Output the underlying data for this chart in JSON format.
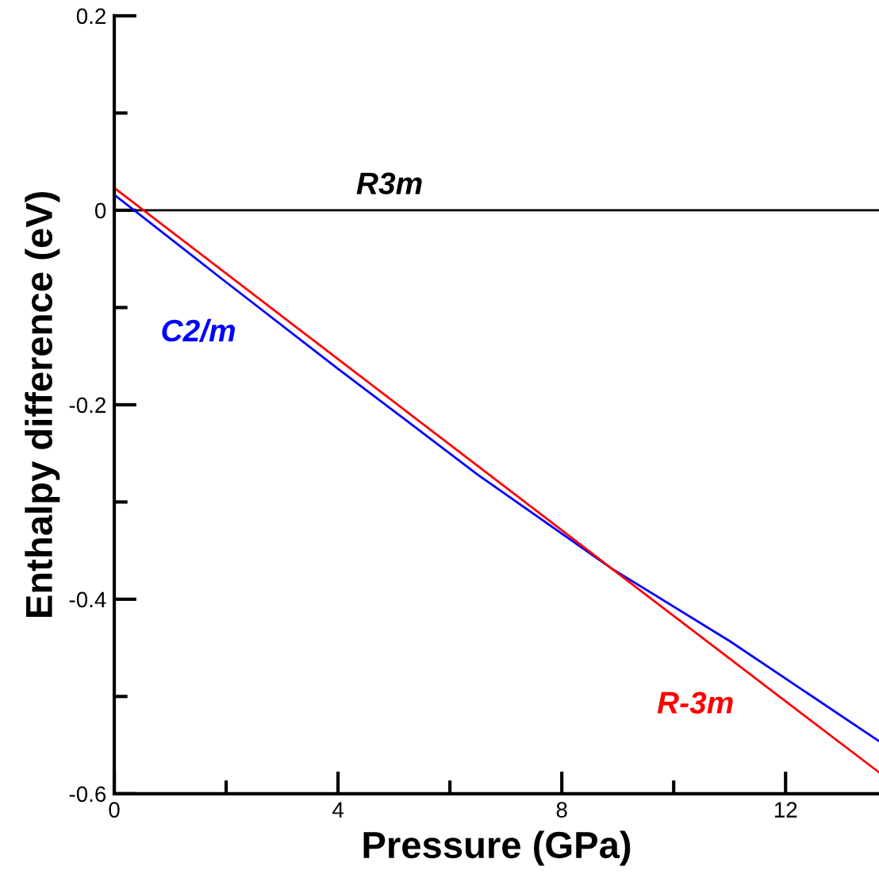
{
  "chart_data": {
    "type": "line",
    "xlabel": "Pressure (GPa)",
    "ylabel": "Enthalpy difference (eV)",
    "xlim": [
      0,
      13.67
    ],
    "ylim": [
      -0.6,
      0.2
    ],
    "xticks": [
      0,
      {
        "value": 2,
        "label": null
      },
      4,
      {
        "value": 6,
        "label": null
      },
      8,
      {
        "value": 10,
        "label": null
      },
      12
    ],
    "yticks": [
      {
        "value": -0.6,
        "label": "-0.6"
      },
      {
        "value": -0.5,
        "label": null
      },
      {
        "value": -0.4,
        "label": "-0.4"
      },
      {
        "value": -0.3,
        "label": null
      },
      {
        "value": -0.2,
        "label": "-0.2"
      },
      {
        "value": -0.1,
        "label": null
      },
      0,
      {
        "value": 0.1,
        "label": null
      },
      0.2
    ],
    "grid": false,
    "legend": false,
    "marker": "none",
    "line_style": "solid",
    "series": [
      {
        "name": "R3m",
        "color": "#000000",
        "x": [
          0,
          13.67
        ],
        "values": [
          0,
          0
        ]
      },
      {
        "name": "C2/m",
        "color": "#0000ff",
        "x": [
          0,
          2,
          4,
          6.5,
          8.88,
          11,
          13.67
        ],
        "values": [
          0.016,
          -0.074,
          -0.163,
          -0.272,
          -0.368,
          -0.443,
          -0.546
        ]
      },
      {
        "name": "R-3m",
        "color": "#ff0000",
        "x": [
          0,
          4,
          8,
          8.88,
          12,
          13.67
        ],
        "values": [
          0.023,
          -0.153,
          -0.329,
          -0.368,
          -0.505,
          -0.578
        ]
      }
    ]
  }
}
